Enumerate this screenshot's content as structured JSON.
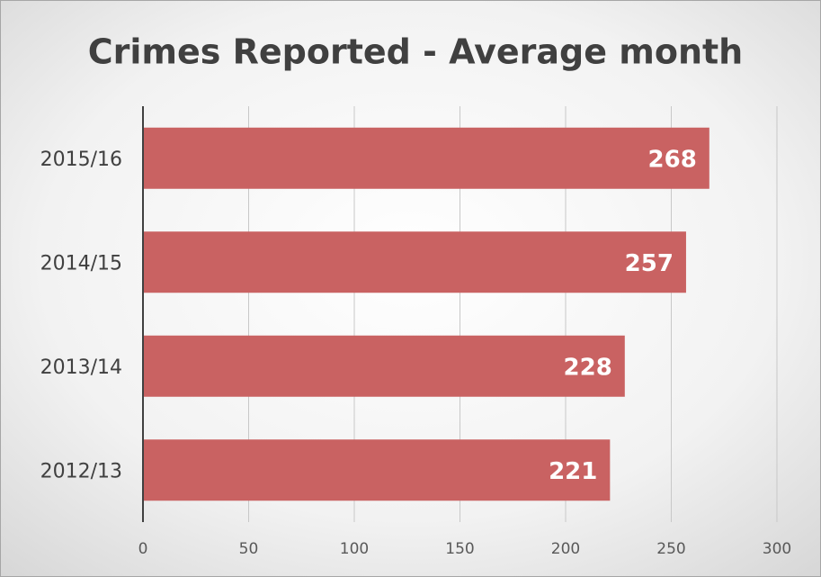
{
  "chart_data": {
    "type": "bar",
    "orientation": "horizontal",
    "title": "Crimes Reported - Average month",
    "categories": [
      "2015/16",
      "2014/15",
      "2013/14",
      "2012/13"
    ],
    "values": [
      268,
      257,
      228,
      221
    ],
    "color": "#c96262",
    "xlim": [
      0,
      300
    ],
    "xticks": [
      0,
      50,
      100,
      150,
      200,
      250,
      300
    ],
    "grid": true
  }
}
